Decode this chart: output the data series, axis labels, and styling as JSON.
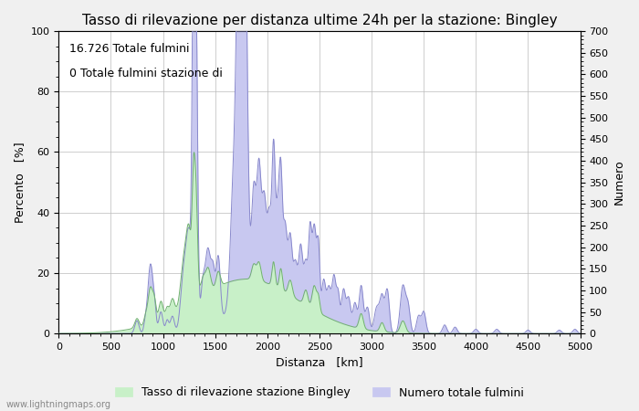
{
  "title": "Tasso di rilevazione per distanza ultime 24h per la stazione: Bingley",
  "xlabel": "Distanza   [km]",
  "ylabel_left": "Percento   [%]",
  "ylabel_right": "Numero",
  "annotation_line1": "16.726 Totale fulmini",
  "annotation_line2": "0 Totale fulmini stazione di",
  "xlim": [
    0,
    5000
  ],
  "ylim_left": [
    0,
    100
  ],
  "ylim_right": [
    0,
    700
  ],
  "xticks": [
    0,
    500,
    1000,
    1500,
    2000,
    2500,
    3000,
    3500,
    4000,
    4500,
    5000
  ],
  "yticks_left": [
    0,
    20,
    40,
    60,
    80,
    100
  ],
  "yticks_right": [
    0,
    50,
    100,
    150,
    200,
    250,
    300,
    350,
    400,
    450,
    500,
    550,
    600,
    650,
    700
  ],
  "legend_label_green": "Tasso di rilevazione stazione Bingley",
  "legend_label_blue": "Numero totale fulmini",
  "fill_green_color": "#c8f0c8",
  "fill_blue_color": "#c8c8f0",
  "line_color": "#8888cc",
  "background_color": "#f0f0f0",
  "plot_background": "#ffffff",
  "watermark": "www.lightningmaps.org",
  "title_fontsize": 11,
  "axis_fontsize": 9,
  "tick_fontsize": 8
}
